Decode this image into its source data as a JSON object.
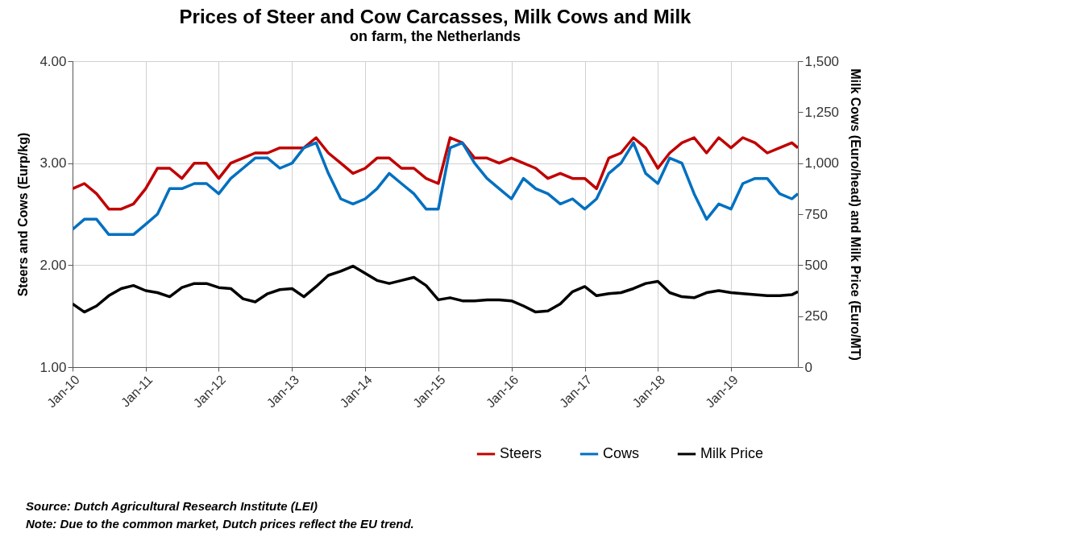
{
  "chart_data": {
    "type": "line",
    "title": "Prices of Steer and Cow Carcasses, Milk Cows and Milk",
    "subtitle": "on farm, the Netherlands",
    "ylabel": "Steers and Cows (Eurp/kg)",
    "y2label": "Milk Cows (Euro/head) and Milk Price (Euro/MT)",
    "x": [
      "2010-01",
      "2010-03",
      "2010-05",
      "2010-07",
      "2010-09",
      "2010-11",
      "2011-01",
      "2011-03",
      "2011-05",
      "2011-07",
      "2011-09",
      "2011-11",
      "2012-01",
      "2012-03",
      "2012-05",
      "2012-07",
      "2012-09",
      "2012-11",
      "2013-01",
      "2013-03",
      "2013-05",
      "2013-07",
      "2013-09",
      "2013-11",
      "2014-01",
      "2014-03",
      "2014-05",
      "2014-07",
      "2014-09",
      "2014-11",
      "2015-01",
      "2015-03",
      "2015-05",
      "2015-07",
      "2015-09",
      "2015-11",
      "2016-01",
      "2016-03",
      "2016-05",
      "2016-07",
      "2016-09",
      "2016-11",
      "2017-01",
      "2017-03",
      "2017-05",
      "2017-07",
      "2017-09",
      "2017-11",
      "2018-01",
      "2018-03",
      "2018-05",
      "2018-07",
      "2018-09",
      "2018-11",
      "2019-01",
      "2019-03",
      "2019-05",
      "2019-07",
      "2019-09",
      "2019-11",
      "2019-12"
    ],
    "series": [
      {
        "name": "Steers",
        "color": "#c00000",
        "axis": "y",
        "values": [
          2.75,
          2.8,
          2.7,
          2.55,
          2.55,
          2.6,
          2.75,
          2.95,
          2.95,
          2.85,
          3.0,
          3.0,
          2.85,
          3.0,
          3.05,
          3.1,
          3.1,
          3.15,
          3.15,
          3.15,
          3.25,
          3.1,
          3.0,
          2.9,
          2.95,
          3.05,
          3.05,
          2.95,
          2.95,
          2.85,
          2.8,
          3.25,
          3.2,
          3.05,
          3.05,
          3.0,
          3.05,
          3.0,
          2.95,
          2.85,
          2.9,
          2.85,
          2.85,
          2.75,
          3.05,
          3.1,
          3.25,
          3.15,
          2.95,
          3.1,
          3.2,
          3.25,
          3.1,
          3.25,
          3.15,
          3.25,
          3.2,
          3.1,
          3.15,
          3.2,
          3.15
        ]
      },
      {
        "name": "Cows",
        "color": "#0070c0",
        "axis": "y2",
        "values": [
          675,
          725,
          725,
          650,
          650,
          650,
          700,
          750,
          875,
          875,
          900,
          900,
          850,
          925,
          975,
          1025,
          1025,
          975,
          1000,
          1075,
          1100,
          950,
          825,
          800,
          825,
          875,
          950,
          900,
          850,
          775,
          775,
          1075,
          1100,
          1000,
          925,
          875,
          825,
          925,
          875,
          850,
          800,
          825,
          775,
          825,
          950,
          1000,
          1100,
          950,
          900,
          1025,
          1000,
          850,
          725,
          800,
          775,
          900,
          925,
          925,
          850,
          825,
          850
        ]
      },
      {
        "name": "Milk Price",
        "color": "#000000",
        "axis": "y2",
        "values": [
          310,
          270,
          300,
          350,
          385,
          400,
          375,
          365,
          345,
          390,
          410,
          410,
          390,
          385,
          335,
          320,
          360,
          380,
          385,
          345,
          395,
          450,
          470,
          495,
          460,
          425,
          410,
          425,
          440,
          400,
          330,
          340,
          325,
          325,
          330,
          330,
          325,
          300,
          270,
          275,
          310,
          370,
          395,
          350,
          360,
          365,
          385,
          410,
          420,
          365,
          345,
          340,
          365,
          375,
          365,
          360,
          355,
          350,
          350,
          355,
          370
        ]
      }
    ],
    "xlim": [
      "2010-01",
      "2019-12"
    ],
    "xticks": [
      {
        "value": "2010-01",
        "label": "Jan-10"
      },
      {
        "value": "2011-01",
        "label": "Jan-11"
      },
      {
        "value": "2012-01",
        "label": "Jan-12"
      },
      {
        "value": "2013-01",
        "label": "Jan-13"
      },
      {
        "value": "2014-01",
        "label": "Jan-14"
      },
      {
        "value": "2015-01",
        "label": "Jan-15"
      },
      {
        "value": "2016-01",
        "label": "Jan-16"
      },
      {
        "value": "2017-01",
        "label": "Jan-17"
      },
      {
        "value": "2018-01",
        "label": "Jan-18"
      },
      {
        "value": "2019-01",
        "label": "Jan-19"
      }
    ],
    "ylim": [
      1,
      4
    ],
    "yticks": [
      {
        "value": 1,
        "label": "1.00"
      },
      {
        "value": 2,
        "label": "2.00"
      },
      {
        "value": 3,
        "label": "3.00"
      },
      {
        "value": 4,
        "label": "4.00"
      }
    ],
    "y2lim": [
      0,
      1500
    ],
    "y2ticks": [
      0,
      250,
      500,
      750,
      {
        "value": 1000,
        "label": "1,000"
      },
      {
        "value": 1250,
        "label": "1,250"
      },
      {
        "value": 1500,
        "label": "1,500"
      }
    ],
    "grid": true,
    "legend": "bottom right",
    "line_style": "solid",
    "annotations": [
      "Source: Dutch Agricultural Research Institute (LEI)",
      "Note: Due to the common market, Dutch prices reflect the EU trend."
    ]
  }
}
